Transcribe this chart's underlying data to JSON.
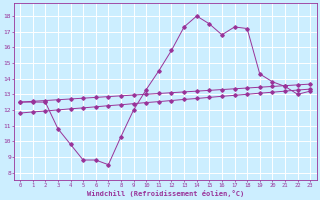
{
  "xlabel": "Windchill (Refroidissement éolien,°C)",
  "bg_color": "#cceeff",
  "grid_color": "#ffffff",
  "line_color": "#993399",
  "x_ticks": [
    0,
    1,
    2,
    3,
    4,
    5,
    6,
    7,
    8,
    9,
    10,
    11,
    12,
    13,
    14,
    15,
    16,
    17,
    18,
    19,
    20,
    21,
    22,
    23
  ],
  "y_ticks": [
    8,
    9,
    10,
    11,
    12,
    13,
    14,
    15,
    16,
    17,
    18
  ],
  "ylim": [
    7.5,
    18.8
  ],
  "xlim": [
    -0.5,
    23.5
  ],
  "line1_y": [
    12.5,
    12.5,
    12.5,
    10.8,
    9.8,
    8.8,
    8.8,
    8.5,
    10.3,
    12.0,
    13.3,
    14.5,
    15.8,
    17.3,
    18.0,
    17.5,
    16.8,
    17.3,
    17.2,
    14.3,
    13.8,
    13.5,
    13.0,
    13.2
  ],
  "line2_y": [
    12.5,
    12.55,
    12.6,
    12.65,
    12.7,
    12.75,
    12.8,
    12.85,
    12.9,
    12.95,
    13.0,
    13.05,
    13.1,
    13.15,
    13.2,
    13.25,
    13.3,
    13.35,
    13.4,
    13.45,
    13.5,
    13.55,
    13.6,
    13.65
  ],
  "line3_y": [
    11.8,
    11.87,
    11.93,
    12.0,
    12.07,
    12.13,
    12.2,
    12.27,
    12.33,
    12.4,
    12.47,
    12.53,
    12.6,
    12.67,
    12.73,
    12.8,
    12.87,
    12.93,
    13.0,
    13.07,
    13.13,
    13.2,
    13.27,
    13.33
  ]
}
